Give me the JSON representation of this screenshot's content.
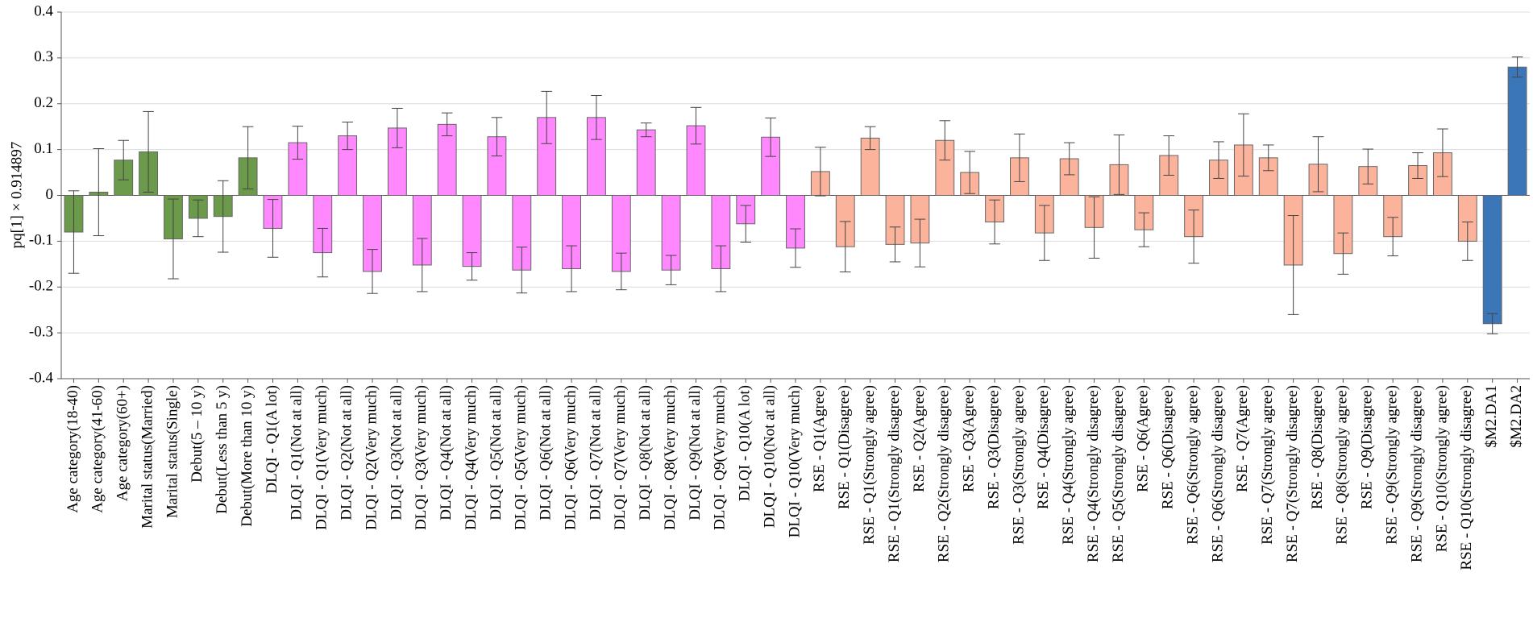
{
  "chart_data": {
    "type": "bar",
    "ylabel": "pq[1] × 0.914897",
    "categories": [
      "Age category(18-40)",
      "Age category(41-60)",
      "Age category(60+)",
      "Marital status(Married)",
      "Marital status(Single)",
      "Debut(5 – 10 y)",
      "Debut(Less than 5 y)",
      "Debut(More than 10 y)",
      "DLQI - Q1(A lot)",
      "DLQI - Q1(Not at all)",
      "DLQI - Q1(Very much)",
      "DLQI - Q2(Not at all)",
      "DLQI - Q2(Very much)",
      "DLQI - Q3(Not at all)",
      "DLQI - Q3(Very much)",
      "DLQI - Q4(Not at all)",
      "DLQI - Q4(Very much)",
      "DLQI - Q5(Not at all)",
      "DLQI - Q5(Very much)",
      "DLQI - Q6(Not at all)",
      "DLQI - Q6(Very much)",
      "DLQI - Q7(Not at all)",
      "DLQI - Q7(Very much)",
      "DLQI - Q8(Not at all)",
      "DLQI - Q8(Very much)",
      "DLQI - Q9(Not at all)",
      "DLQI - Q9(Very much)",
      "DLQI - Q10(A lot)",
      "DLQI - Q10(Not at all)",
      "DLQI - Q10(Very much)",
      "RSE - Q1(Agree)",
      "RSE - Q1(Disagree)",
      "RSE - Q1(Strongly agree)",
      "RSE - Q1(Strongly disagree)",
      "RSE - Q2(Agree)",
      "RSE - Q2(Strongly disagree)",
      "RSE - Q3(Agree)",
      "RSE - Q3(Disagree)",
      "RSE - Q3(Strongly agree)",
      "RSE - Q4(Disagree)",
      "RSE - Q4(Strongly agree)",
      "RSE - Q4(Strongly disagree)",
      "RSE - Q5(Strongly disagree)",
      "RSE - Q6(Agree)",
      "RSE - Q6(Disagree)",
      "RSE - Q6(Strongly agree)",
      "RSE - Q6(Strongly disagree)",
      "RSE - Q7(Agree)",
      "RSE - Q7(Strongly agree)",
      "RSE - Q7(Strongly disagree)",
      "RSE - Q8(Disagree)",
      "RSE - Q8(Strongly agree)",
      "RSE - Q9(Disagree)",
      "RSE - Q9(Strongly agree)",
      "RSE - Q9(Strongly disagree)",
      "RSE - Q10(Strongly agree)",
      "RSE - Q10(Strongly disagree)",
      "$M2.DA1",
      "$M2.DA2"
    ],
    "values": [
      -0.08,
      0.007,
      0.077,
      0.095,
      -0.095,
      -0.05,
      -0.046,
      0.082,
      -0.072,
      0.115,
      -0.125,
      0.13,
      -0.166,
      0.147,
      -0.152,
      0.155,
      -0.155,
      0.128,
      -0.163,
      0.17,
      -0.16,
      0.17,
      -0.166,
      0.143,
      -0.163,
      0.152,
      -0.16,
      -0.062,
      0.127,
      -0.115,
      0.052,
      -0.112,
      0.125,
      -0.107,
      -0.104,
      0.12,
      0.05,
      -0.058,
      0.082,
      -0.082,
      0.08,
      -0.07,
      0.067,
      -0.075,
      0.087,
      -0.09,
      0.077,
      0.11,
      0.082,
      -0.152,
      0.068,
      -0.127,
      0.063,
      -0.09,
      0.065,
      0.093,
      -0.1,
      -0.28,
      0.28
    ],
    "errors": [
      0.09,
      0.095,
      0.043,
      0.088,
      0.087,
      0.04,
      0.078,
      0.068,
      0.063,
      0.036,
      0.053,
      0.03,
      0.048,
      0.043,
      0.058,
      0.025,
      0.03,
      0.042,
      0.05,
      0.057,
      0.05,
      0.048,
      0.04,
      0.015,
      0.032,
      0.04,
      0.05,
      0.04,
      0.042,
      0.042,
      0.053,
      0.055,
      0.025,
      0.038,
      0.052,
      0.043,
      0.046,
      0.048,
      0.052,
      0.06,
      0.035,
      0.067,
      0.065,
      0.037,
      0.043,
      0.058,
      0.04,
      0.068,
      0.028,
      0.108,
      0.06,
      0.045,
      0.038,
      0.042,
      0.028,
      0.052,
      0.042,
      0.022,
      0.022
    ],
    "colors": [
      "#6b9a4a",
      "#6b9a4a",
      "#6b9a4a",
      "#6b9a4a",
      "#6b9a4a",
      "#6b9a4a",
      "#6b9a4a",
      "#6b9a4a",
      "#ff88ff",
      "#ff88ff",
      "#ff88ff",
      "#ff88ff",
      "#ff88ff",
      "#ff88ff",
      "#ff88ff",
      "#ff88ff",
      "#ff88ff",
      "#ff88ff",
      "#ff88ff",
      "#ff88ff",
      "#ff88ff",
      "#ff88ff",
      "#ff88ff",
      "#ff88ff",
      "#ff88ff",
      "#ff88ff",
      "#ff88ff",
      "#ff88ff",
      "#ff88ff",
      "#ff88ff",
      "#fbb49b",
      "#fbb49b",
      "#fbb49b",
      "#fbb49b",
      "#fbb49b",
      "#fbb49b",
      "#fbb49b",
      "#fbb49b",
      "#fbb49b",
      "#fbb49b",
      "#fbb49b",
      "#fbb49b",
      "#fbb49b",
      "#fbb49b",
      "#fbb49b",
      "#fbb49b",
      "#fbb49b",
      "#fbb49b",
      "#fbb49b",
      "#fbb49b",
      "#fbb49b",
      "#fbb49b",
      "#fbb49b",
      "#fbb49b",
      "#fbb49b",
      "#fbb49b",
      "#fbb49b",
      "#3b77b8",
      "#3b77b8"
    ],
    "ylim": [
      -0.4,
      0.4
    ],
    "yticks": [
      -0.4,
      -0.3,
      -0.2,
      -0.1,
      0,
      0.1,
      0.2,
      0.3,
      0.4
    ],
    "grid": true
  }
}
